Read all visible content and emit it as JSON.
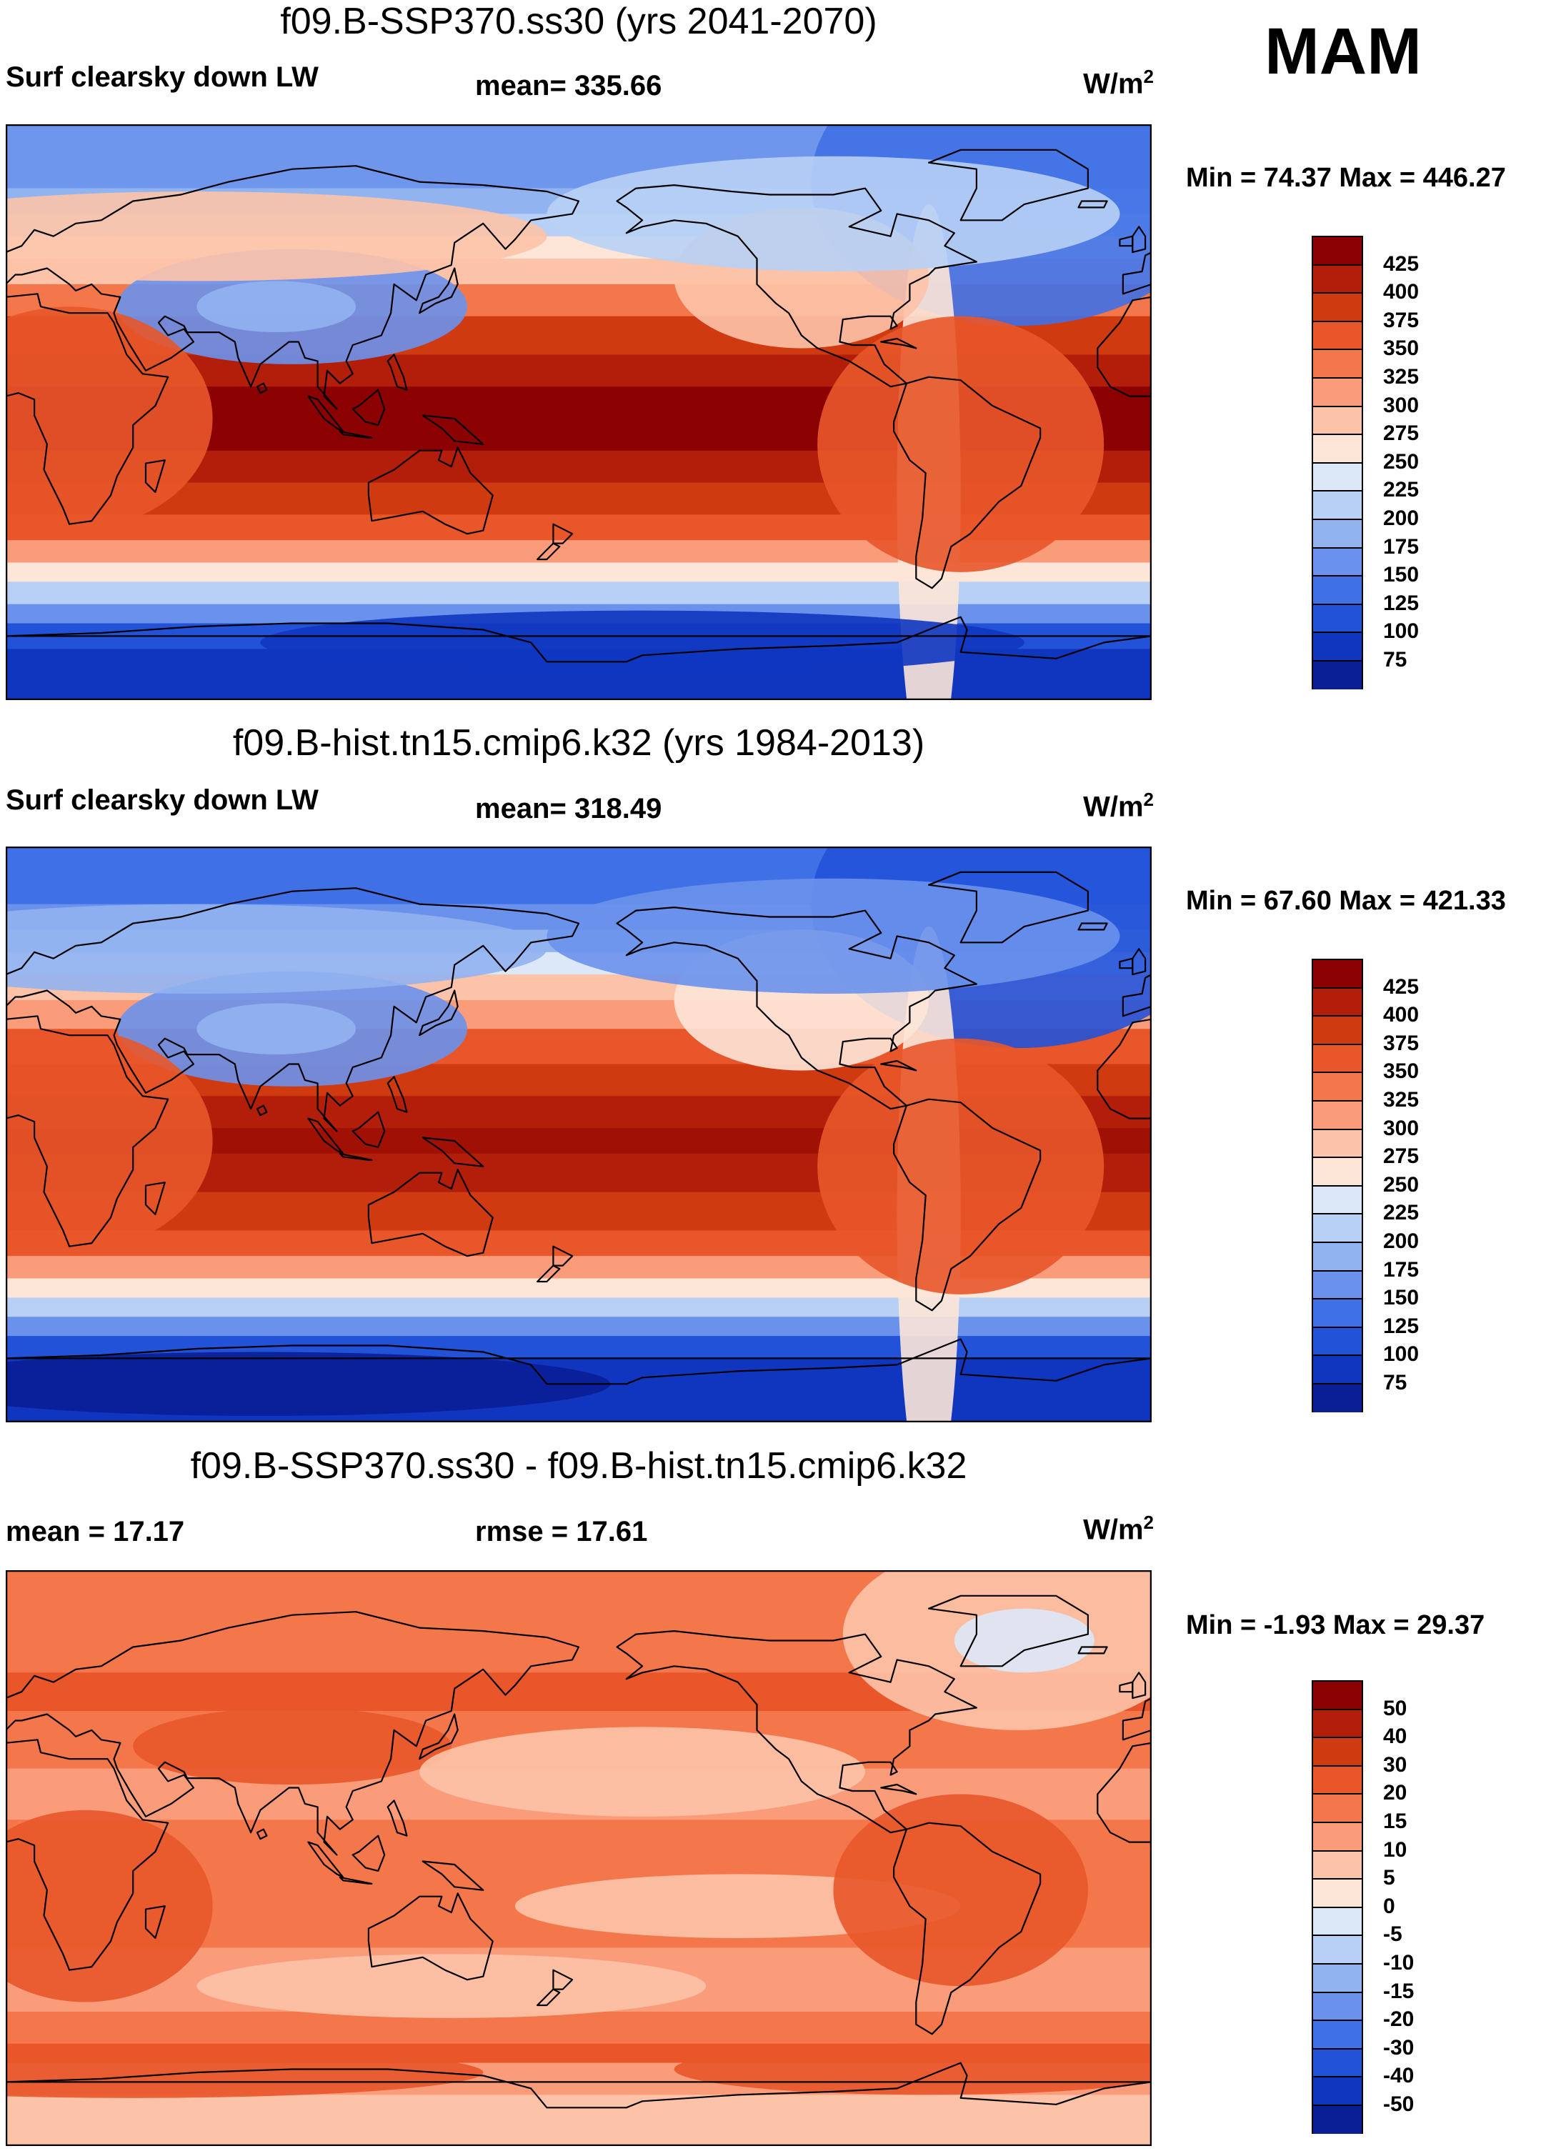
{
  "season": "MAM",
  "units_base": "W/m",
  "units_sup": "2",
  "panels": [
    {
      "title": "f09.B-SSP370.ss30 (yrs 2041-2070)",
      "left_label": "Surf clearsky down LW",
      "center_label": "mean= 335.66",
      "minmax": "Min =  74.37 Max = 446.27",
      "legend_labels": [
        "425",
        "400",
        "375",
        "350",
        "325",
        "300",
        "275",
        "250",
        "225",
        "200",
        "175",
        "150",
        "125",
        "100",
        "75"
      ],
      "legend_colors": [
        "#8b0000",
        "#b21e0a",
        "#d03a10",
        "#e8562a",
        "#f4774c",
        "#fa9c7a",
        "#fdc3a8",
        "#fde6d8",
        "#dce8f8",
        "#b8d0f5",
        "#91b3f0",
        "#6a92ec",
        "#4070e6",
        "#2252d8",
        "#1036c0",
        "#0a1e96"
      ],
      "bands": [
        {
          "lat": 90,
          "color": "#6e96ec"
        },
        {
          "lat": 70,
          "color": "#91b3f0"
        },
        {
          "lat": 62,
          "color": "#b8d0f5"
        },
        {
          "lat": 55,
          "color": "#fde6d8"
        },
        {
          "lat": 48,
          "color": "#fdc3a8"
        },
        {
          "lat": 40,
          "color": "#f4774c"
        },
        {
          "lat": 30,
          "color": "#d03a10"
        },
        {
          "lat": 18,
          "color": "#b21e0a"
        },
        {
          "lat": 8,
          "color": "#8b0000"
        },
        {
          "lat": -12,
          "color": "#b21e0a"
        },
        {
          "lat": -22,
          "color": "#d03a10"
        },
        {
          "lat": -32,
          "color": "#e8562a"
        },
        {
          "lat": -40,
          "color": "#fa9c7a"
        },
        {
          "lat": -47,
          "color": "#fde6d8"
        },
        {
          "lat": -53,
          "color": "#b8d0f5"
        },
        {
          "lat": -60,
          "color": "#6a92ec"
        },
        {
          "lat": -66,
          "color": "#2252d8"
        },
        {
          "lat": -74,
          "color": "#1036c0"
        }
      ]
    },
    {
      "title": "f09.B-hist.tn15.cmip6.k32 (yrs 1984-2013)",
      "left_label": "Surf clearsky down LW",
      "center_label": "mean= 318.49",
      "minmax": "Min =  67.60 Max = 421.33",
      "legend_labels": [
        "425",
        "400",
        "375",
        "350",
        "325",
        "300",
        "275",
        "250",
        "225",
        "200",
        "175",
        "150",
        "125",
        "100",
        "75"
      ],
      "legend_colors": [
        "#8b0000",
        "#b21e0a",
        "#d03a10",
        "#e8562a",
        "#f4774c",
        "#fa9c7a",
        "#fdc3a8",
        "#fde6d8",
        "#dce8f8",
        "#b8d0f5",
        "#91b3f0",
        "#6a92ec",
        "#4070e6",
        "#2252d8",
        "#1036c0",
        "#0a1e96"
      ],
      "bands": [
        {
          "lat": 90,
          "color": "#4070e6"
        },
        {
          "lat": 72,
          "color": "#6a92ec"
        },
        {
          "lat": 64,
          "color": "#91b3f0"
        },
        {
          "lat": 57,
          "color": "#dce8f8"
        },
        {
          "lat": 50,
          "color": "#fdc3a8"
        },
        {
          "lat": 42,
          "color": "#fa9c7a"
        },
        {
          "lat": 33,
          "color": "#e8562a"
        },
        {
          "lat": 22,
          "color": "#d03a10"
        },
        {
          "lat": 12,
          "color": "#b21e0a"
        },
        {
          "lat": 2,
          "color": "#a01005"
        },
        {
          "lat": -6,
          "color": "#b21e0a"
        },
        {
          "lat": -18,
          "color": "#d03a10"
        },
        {
          "lat": -30,
          "color": "#e8562a"
        },
        {
          "lat": -38,
          "color": "#fa9c7a"
        },
        {
          "lat": -45,
          "color": "#fde6d8"
        },
        {
          "lat": -51,
          "color": "#b8d0f5"
        },
        {
          "lat": -57,
          "color": "#6a92ec"
        },
        {
          "lat": -63,
          "color": "#2252d8"
        },
        {
          "lat": -70,
          "color": "#1036c0"
        }
      ]
    },
    {
      "title": "f09.B-SSP370.ss30 - f09.B-hist.tn15.cmip6.k32",
      "left_label": "mean =  17.17",
      "center_label": "rmse =  17.61",
      "minmax": "Min =  -1.93 Max =  29.37",
      "legend_labels": [
        "50",
        "40",
        "30",
        "20",
        "15",
        "10",
        "5",
        "0",
        "-5",
        "-10",
        "-15",
        "-20",
        "-30",
        "-40",
        "-50"
      ],
      "legend_colors": [
        "#8b0000",
        "#b21e0a",
        "#d03a10",
        "#e8562a",
        "#f4774c",
        "#fa9c7a",
        "#fdc3a8",
        "#fde6d8",
        "#dce8f8",
        "#b8d0f5",
        "#91b3f0",
        "#6a92ec",
        "#4070e6",
        "#2252d8",
        "#1036c0",
        "#0a1e96"
      ],
      "bands": [
        {
          "lat": 90,
          "color": "#f4774c"
        },
        {
          "lat": 58,
          "color": "#e8562a"
        },
        {
          "lat": 46,
          "color": "#f4774c"
        },
        {
          "lat": 28,
          "color": "#fa9c7a"
        },
        {
          "lat": 12,
          "color": "#f4774c"
        },
        {
          "lat": -8,
          "color": "#f4774c"
        },
        {
          "lat": -28,
          "color": "#fa9c7a"
        },
        {
          "lat": -48,
          "color": "#f4774c"
        },
        {
          "lat": -58,
          "color": "#e8562a"
        },
        {
          "lat": -64,
          "color": "#fa9c7a"
        },
        {
          "lat": -74,
          "color": "#fdc3a8"
        }
      ]
    }
  ]
}
